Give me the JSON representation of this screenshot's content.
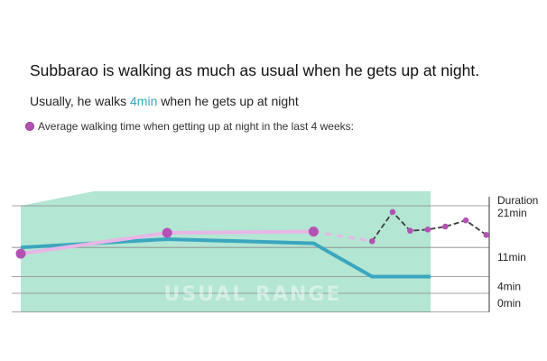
{
  "header": {
    "headline": "Subbarao is walking as much as usual when he gets up at night.",
    "subline_prefix": "Usually, he walks ",
    "subline_value": "4min",
    "subline_suffix": " when he gets up at night"
  },
  "legend": {
    "label": "Average walking time when getting up at night in the last 4 weeks:"
  },
  "colors": {
    "band": "#b3e6d3",
    "usual_line": "#3aa6bf",
    "walking_light": "#e7b6e7",
    "walking_point": "#b452b4",
    "recent_line": "#3c3c3c",
    "gridline": "#888888"
  },
  "chart_data": {
    "type": "line",
    "title": "",
    "ylabel": "Duration",
    "ylim": [
      0,
      21
    ],
    "ytick_labels": [
      {
        "value": 21,
        "label": "21min"
      },
      {
        "value": 11,
        "label": "11min"
      },
      {
        "value": 4,
        "label": "4min",
        "highlight": true
      },
      {
        "value": 0,
        "label": "0min"
      }
    ],
    "band_label": "USUAL RANGE",
    "usual_range": {
      "x": [
        0,
        2.5,
        5,
        10,
        14
      ],
      "upper": [
        21,
        24.5,
        24.5,
        24.5,
        24.5
      ],
      "lower": [
        -4.5,
        -4.5,
        -4.5,
        -4.5,
        -4.5
      ]
    },
    "series": [
      {
        "key": "usual",
        "x": [
          0,
          5,
          10,
          12,
          14
        ],
        "values": [
          11,
          13,
          12,
          4,
          4
        ]
      },
      {
        "key": "monthly",
        "x": [
          0,
          5,
          10
        ],
        "values": [
          9.5,
          14.5,
          14.8
        ]
      },
      {
        "key": "trend_gap",
        "x": [
          10,
          12
        ],
        "values": [
          14.8,
          12.5
        ]
      },
      {
        "key": "recent",
        "x": [
          12,
          12.7,
          13.3,
          13.9,
          14.5,
          15.2,
          15.9
        ],
        "values": [
          12.5,
          19.5,
          15,
          15.3,
          16,
          17.5,
          14
        ]
      }
    ]
  }
}
